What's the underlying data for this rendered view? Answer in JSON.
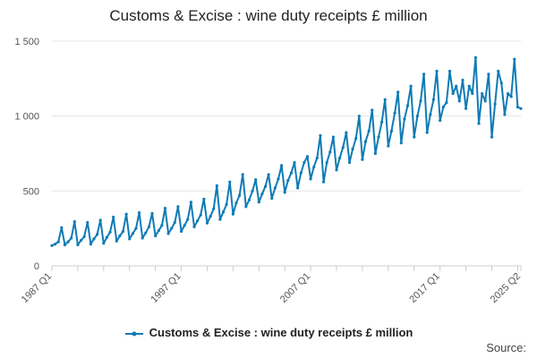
{
  "title": "Customs & Excise : wine duty receipts £ million",
  "legend_label": "Customs & Excise : wine duty receipts £ million",
  "source_label": "Source:",
  "colors": {
    "series": "#0f7bb5",
    "grid": "#e6e6e6",
    "axis": "#cccccc",
    "text": "#555555"
  },
  "chart_data": {
    "type": "line",
    "title": "Customs & Excise : wine duty receipts £ million",
    "xlabel": "",
    "ylabel": "",
    "x_range": [
      "1987 Q1",
      "2025 Q2"
    ],
    "x_tick_labels": [
      "1987 Q1",
      "1997 Q1",
      "2007 Q1",
      "2017 Q1",
      "2025 Q2"
    ],
    "y_tick_labels": [
      "0",
      "500",
      "1 000",
      "1 500"
    ],
    "y_ticks": [
      0,
      500,
      1000,
      1500
    ],
    "ylim": [
      0,
      1500
    ],
    "grid": true,
    "legend_position": "bottom",
    "series": [
      {
        "name": "Customs & Excise : wine duty receipts £ million",
        "x_start": "1987 Q1",
        "frequency": "quarterly",
        "values": [
          135,
          145,
          160,
          255,
          140,
          160,
          185,
          295,
          140,
          170,
          195,
          290,
          145,
          180,
          210,
          305,
          150,
          190,
          225,
          325,
          165,
          200,
          230,
          345,
          180,
          215,
          250,
          355,
          185,
          220,
          260,
          350,
          200,
          235,
          270,
          385,
          215,
          250,
          290,
          395,
          230,
          270,
          310,
          425,
          260,
          300,
          340,
          445,
          285,
          330,
          380,
          535,
          310,
          360,
          410,
          560,
          345,
          420,
          470,
          610,
          395,
          440,
          500,
          575,
          425,
          480,
          530,
          610,
          450,
          520,
          580,
          670,
          490,
          570,
          620,
          690,
          520,
          620,
          690,
          730,
          580,
          660,
          720,
          870,
          560,
          690,
          760,
          860,
          640,
          720,
          790,
          890,
          690,
          780,
          850,
          1000,
          710,
          830,
          900,
          1040,
          750,
          860,
          960,
          1110,
          800,
          900,
          1020,
          1160,
          820,
          980,
          1070,
          1200,
          860,
          1000,
          1100,
          1280,
          890,
          1010,
          1110,
          1300,
          970,
          1060,
          1090,
          1300,
          1150,
          1200,
          1100,
          1240,
          1050,
          1200,
          1150,
          1390,
          950,
          1150,
          1100,
          1280,
          860,
          1080,
          1300,
          1220,
          1010,
          1150,
          1130,
          1380,
          1060,
          1050
        ]
      }
    ]
  }
}
